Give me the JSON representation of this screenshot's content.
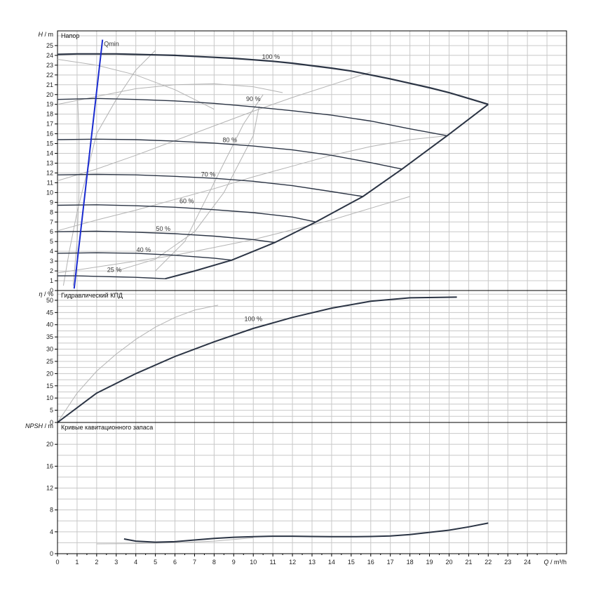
{
  "colors": {
    "grid": "#c8c8c8",
    "frame": "#000000",
    "pump_curve": "#2b3444",
    "efficiency_iso": "#b4b4b4",
    "qmin": "#1a2bd0"
  },
  "chart_data": [
    {
      "type": "line",
      "panel": "head",
      "title": "Напор",
      "ylabel_var": "H",
      "ylabel_unit": " / m",
      "xlim": [
        0,
        26
      ],
      "ylim": [
        0,
        26.5
      ],
      "yticks": [
        0,
        1,
        2,
        3,
        4,
        5,
        6,
        7,
        8,
        9,
        10,
        11,
        12,
        13,
        14,
        15,
        16,
        17,
        18,
        19,
        20,
        21,
        22,
        23,
        24,
        25
      ],
      "grid": true,
      "series": [
        {
          "name": "100 %",
          "x": [
            0,
            1,
            2,
            3,
            4,
            5,
            6,
            7,
            8,
            9,
            10,
            11,
            12,
            13,
            14,
            15,
            16,
            17,
            18,
            19,
            20,
            21,
            22
          ],
          "y": [
            24.1,
            24.15,
            24.15,
            24.15,
            24.1,
            24.05,
            24.0,
            23.9,
            23.8,
            23.7,
            23.55,
            23.4,
            23.2,
            22.95,
            22.7,
            22.4,
            22.0,
            21.6,
            21.15,
            20.7,
            20.2,
            19.6,
            19.0
          ]
        },
        {
          "name": "90 %",
          "x": [
            0,
            2,
            4,
            6,
            8,
            10,
            12,
            14,
            16,
            18,
            19.9
          ],
          "y": [
            19.5,
            19.6,
            19.5,
            19.35,
            19.1,
            18.75,
            18.35,
            17.9,
            17.3,
            16.5,
            15.8
          ]
        },
        {
          "name": "80 %",
          "x": [
            0,
            2,
            4,
            6,
            8,
            10,
            12,
            14,
            16,
            17.6
          ],
          "y": [
            15.4,
            15.45,
            15.4,
            15.25,
            15.05,
            14.75,
            14.35,
            13.8,
            13.05,
            12.4
          ]
        },
        {
          "name": "70 %",
          "x": [
            0,
            2,
            4,
            6,
            8,
            10,
            12,
            14,
            15.6
          ],
          "y": [
            11.8,
            11.85,
            11.8,
            11.65,
            11.45,
            11.15,
            10.7,
            10.1,
            9.6
          ]
        },
        {
          "name": "60 %",
          "x": [
            0,
            2,
            4,
            6,
            8,
            10,
            12,
            13.2
          ],
          "y": [
            8.7,
            8.75,
            8.65,
            8.5,
            8.25,
            7.95,
            7.5,
            7.0
          ]
        },
        {
          "name": "50 %",
          "x": [
            0,
            2,
            4,
            6,
            8,
            10,
            11.1
          ],
          "y": [
            6.0,
            6.05,
            5.95,
            5.8,
            5.55,
            5.2,
            4.9
          ]
        },
        {
          "name": "40 %",
          "x": [
            0,
            2,
            4,
            6,
            8,
            8.9
          ],
          "y": [
            3.8,
            3.85,
            3.8,
            3.6,
            3.3,
            3.1
          ]
        },
        {
          "name": "25 %",
          "x": [
            0,
            1,
            2,
            3,
            4,
            5,
            5.5
          ],
          "y": [
            1.5,
            1.5,
            1.45,
            1.4,
            1.35,
            1.25,
            1.2
          ]
        }
      ],
      "limit_curve": {
        "x": [
          5.5,
          7,
          8.9,
          11.1,
          13.2,
          15.6,
          17.6,
          19.9,
          22
        ],
        "y": [
          1.2,
          2.0,
          3.1,
          4.9,
          7.0,
          9.6,
          12.4,
          15.8,
          19.0
        ]
      },
      "efficiency_iso_curves": [
        {
          "x": [
            0.3,
            0.6,
            1.0,
            1.5,
            2.0,
            3.0,
            4.0,
            5.0
          ],
          "y": [
            0.5,
            4.0,
            8.0,
            12.0,
            16.0,
            19.5,
            22.5,
            24.5
          ]
        },
        {
          "x": [
            0.8,
            1.0,
            1.1,
            1.1,
            1.0
          ],
          "y": [
            0.5,
            5.0,
            10.0,
            16.0,
            21.0
          ]
        },
        {
          "x": [
            0,
            2,
            4,
            6,
            8,
            10,
            12,
            14,
            16,
            18
          ],
          "y": [
            1.8,
            2.4,
            3.0,
            3.6,
            4.4,
            5.2,
            6.2,
            7.2,
            8.4,
            9.6
          ]
        },
        {
          "x": [
            0,
            2,
            4,
            6,
            8,
            10,
            12,
            14,
            16,
            18,
            19.9
          ],
          "y": [
            6.1,
            7.2,
            8.2,
            9.3,
            10.4,
            11.6,
            12.7,
            13.8,
            14.7,
            15.4,
            15.8
          ]
        },
        {
          "x": [
            0,
            2,
            4,
            6,
            8,
            10,
            12,
            14,
            16
          ],
          "y": [
            11.2,
            12.4,
            13.8,
            15.3,
            16.8,
            18.3,
            19.7,
            21.0,
            22.3
          ]
        },
        {
          "x": [
            0,
            2,
            4,
            6,
            8,
            10,
            11.5
          ],
          "y": [
            19.0,
            19.8,
            20.6,
            21.0,
            21.1,
            20.8,
            20.2
          ]
        },
        {
          "x": [
            3,
            5,
            7,
            8.5,
            10,
            10.3
          ],
          "y": [
            2.0,
            3.2,
            6.0,
            10.0,
            15.8,
            18.8
          ]
        },
        {
          "x": [
            5,
            6.5,
            7.5,
            8.5,
            9.5,
            10.5
          ],
          "y": [
            2.0,
            5.0,
            9.0,
            13.0,
            17.0,
            20.0
          ]
        },
        {
          "x": [
            0,
            2,
            4,
            6,
            8
          ],
          "y": [
            23.6,
            23.0,
            22.0,
            20.5,
            18.5
          ]
        }
      ],
      "curve_labels": [
        {
          "text": "100 %",
          "x": 10.9,
          "y": 23.65
        },
        {
          "text": "90 %",
          "x": 10.0,
          "y": 19.35
        },
        {
          "text": "80 %",
          "x": 8.8,
          "y": 15.15
        },
        {
          "text": "70 %",
          "x": 7.7,
          "y": 11.65
        },
        {
          "text": "60 %",
          "x": 6.6,
          "y": 8.9
        },
        {
          "text": "50 %",
          "x": 5.4,
          "y": 6.1
        },
        {
          "text": "40 %",
          "x": 4.4,
          "y": 3.95
        },
        {
          "text": "25 %",
          "x": 2.9,
          "y": 1.9
        }
      ],
      "qmin": {
        "label": "Qmin",
        "x": [
          0.85,
          2.3
        ],
        "y": [
          0.2,
          25.6
        ]
      }
    },
    {
      "type": "line",
      "panel": "efficiency",
      "title": "Гидравлический КПД",
      "ylabel_var": "η",
      "ylabel_unit": " / %",
      "xlim": [
        0,
        26
      ],
      "ylim": [
        0,
        54
      ],
      "yticks": [
        0,
        5,
        10,
        15,
        20,
        25,
        30,
        35,
        40,
        45,
        50
      ],
      "grid": true,
      "series": [
        {
          "name": "100 %",
          "x": [
            0,
            2,
            4,
            6,
            8,
            10,
            12,
            14,
            16,
            18,
            20.4
          ],
          "y": [
            0,
            12,
            20,
            27,
            33,
            38.5,
            43,
            46.8,
            49.6,
            51.0,
            51.3
          ]
        }
      ],
      "efficiency_iso_curves": [
        {
          "x": [
            0,
            1,
            2,
            3,
            4,
            5,
            6,
            7,
            8.2
          ],
          "y": [
            0,
            12,
            21,
            28,
            34,
            39,
            43,
            46,
            48
          ]
        }
      ],
      "curve_labels": [
        {
          "text": "100 %",
          "x": 10.0,
          "y": 41.5
        }
      ]
    },
    {
      "type": "line",
      "panel": "npsh",
      "title": "Кривые кавитационного запаса",
      "ylabel_var": "NPSH",
      "ylabel_unit": " / m",
      "xlabel_var": "Q",
      "xlabel_unit": " / m³/h",
      "xlim": [
        0,
        26
      ],
      "ylim": [
        0,
        24
      ],
      "yticks": [
        0,
        4,
        8,
        12,
        16,
        20
      ],
      "xticks": [
        0,
        1,
        2,
        3,
        4,
        5,
        6,
        7,
        8,
        9,
        10,
        11,
        12,
        13,
        14,
        15,
        16,
        17,
        18,
        19,
        20,
        21,
        22,
        23,
        24
      ],
      "grid": true,
      "series": [
        {
          "name": "100 %",
          "x": [
            3.4,
            4,
            5,
            6,
            7,
            8,
            9,
            10,
            11,
            12,
            13,
            14,
            15,
            16,
            17,
            18,
            19,
            20,
            21,
            22
          ],
          "y": [
            2.7,
            2.3,
            2.1,
            2.2,
            2.5,
            2.8,
            3.0,
            3.1,
            3.2,
            3.2,
            3.15,
            3.1,
            3.1,
            3.15,
            3.25,
            3.5,
            3.9,
            4.3,
            4.9,
            5.6
          ]
        }
      ],
      "efficiency_iso_curves": [
        {
          "x": [
            2,
            4,
            6,
            8,
            10
          ],
          "y": [
            1.8,
            1.85,
            2.0,
            2.3,
            2.9
          ]
        }
      ]
    }
  ]
}
